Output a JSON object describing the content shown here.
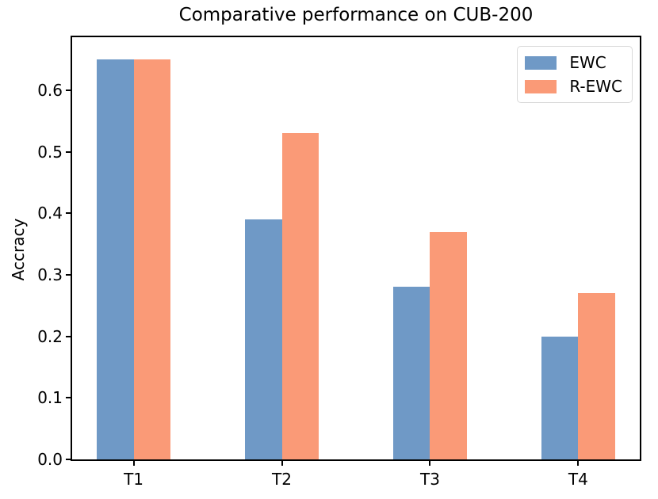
{
  "figure": {
    "title": "Comparative performance on CUB-200",
    "background_color": "#ffffff",
    "spine_color": "#000000"
  },
  "chart_data": {
    "type": "bar",
    "title": "Comparative performance on CUB-200",
    "xlabel": "",
    "ylabel": "Accracy",
    "categories": [
      "T1",
      "T2",
      "T3",
      "T4"
    ],
    "series": [
      {
        "name": "EWC",
        "color": "#6f99c6",
        "values": [
          0.65,
          0.39,
          0.28,
          0.2
        ]
      },
      {
        "name": "R-EWC",
        "color": "#fa9a77",
        "values": [
          0.65,
          0.53,
          0.37,
          0.27
        ]
      }
    ],
    "ylim": [
      0,
      0.686
    ],
    "xlim": [
      -0.415,
      3.415
    ],
    "yticks": {
      "values": [
        0,
        0.1,
        0.2,
        0.3,
        0.4,
        0.5,
        0.6
      ],
      "labels": [
        "0.0",
        "0.1",
        "0.2",
        "0.3",
        "0.4",
        "0.5",
        "0.6"
      ]
    },
    "bar_width": 0.25,
    "grid": false,
    "legend": {
      "position": "upper right",
      "entries": [
        "EWC",
        "R-EWC"
      ]
    }
  }
}
